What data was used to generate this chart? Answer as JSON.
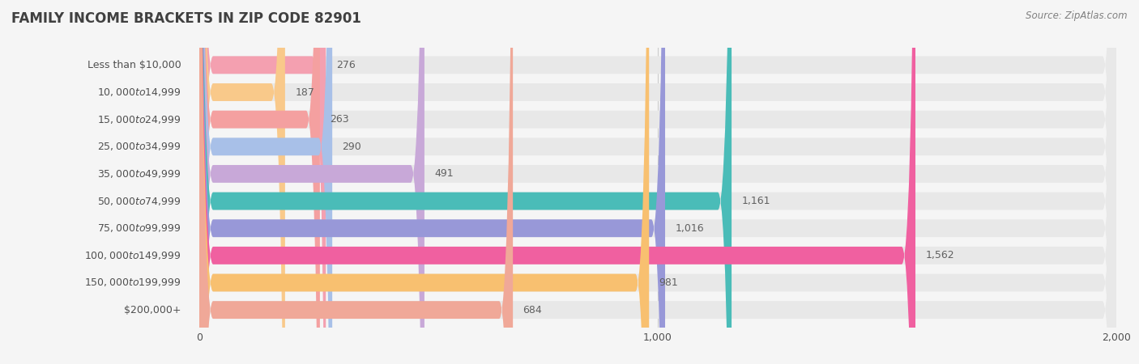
{
  "title": "FAMILY INCOME BRACKETS IN ZIP CODE 82901",
  "source": "Source: ZipAtlas.com",
  "categories": [
    "Less than $10,000",
    "$10,000 to $14,999",
    "$15,000 to $24,999",
    "$25,000 to $34,999",
    "$35,000 to $49,999",
    "$50,000 to $74,999",
    "$75,000 to $99,999",
    "$100,000 to $149,999",
    "$150,000 to $199,999",
    "$200,000+"
  ],
  "values": [
    276,
    187,
    263,
    290,
    491,
    1161,
    1016,
    1562,
    981,
    684
  ],
  "bar_colors": [
    "#F4A0B0",
    "#F9C98A",
    "#F4A0A0",
    "#A8C0E8",
    "#C8A8D8",
    "#4ABCB8",
    "#9898D8",
    "#F060A0",
    "#F8C070",
    "#F0A898"
  ],
  "background_color": "#f5f5f5",
  "bar_bg_color": "#e8e8e8",
  "xlim": [
    0,
    2000
  ],
  "xticks": [
    0,
    1000,
    2000
  ],
  "title_color": "#404040",
  "label_color": "#505050",
  "value_color": "#606060",
  "source_color": "#808080",
  "bar_height": 0.65
}
